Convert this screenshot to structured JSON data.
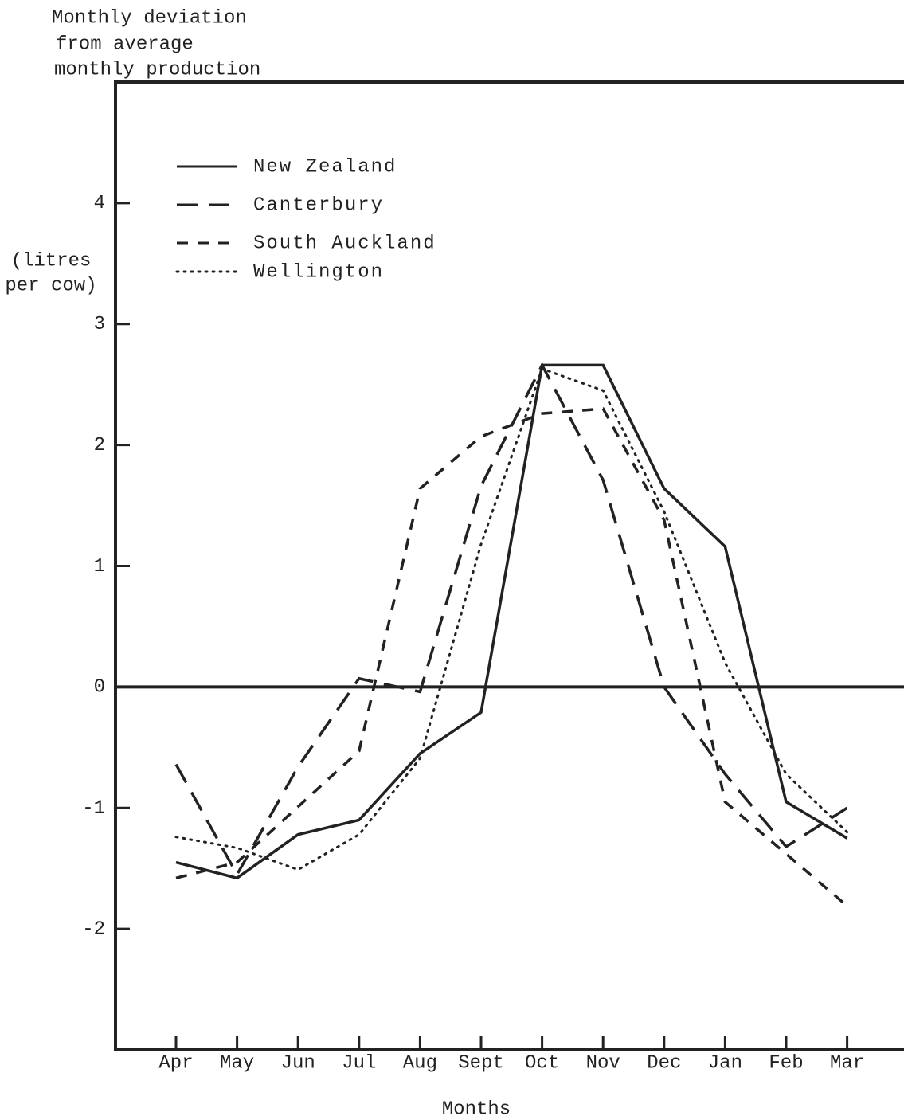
{
  "chart_data": {
    "type": "line",
    "title": [
      "Monthly deviation",
      "from average",
      "monthly production"
    ],
    "y_label": [
      "(litres",
      "per cow)"
    ],
    "x_label": "Months",
    "categories": [
      "Apr",
      "May",
      "Jun",
      "Jul",
      "Aug",
      "Sept",
      "Oct",
      "Nov",
      "Dec",
      "Jan",
      "Feb",
      "Mar"
    ],
    "series": [
      {
        "name": "New Zealand",
        "color": "#222222",
        "dash": "solid",
        "values": [
          -1.45,
          -1.58,
          -1.22,
          -1.1,
          -0.55,
          -0.21,
          2.66,
          2.66,
          1.64,
          1.16,
          -0.95,
          -1.25
        ]
      },
      {
        "name": "Canterbury",
        "color": "#222222",
        "dash": "long",
        "values": [
          -0.64,
          -1.55,
          -0.66,
          0.07,
          -0.04,
          1.66,
          2.66,
          1.71,
          0,
          -0.72,
          -1.32,
          -1.0
        ]
      },
      {
        "name": "South Auckland",
        "color": "#222222",
        "dash": "short",
        "values": [
          -1.58,
          -1.45,
          -0.99,
          -0.53,
          1.64,
          2.07,
          2.26,
          2.3,
          1.38,
          -0.95,
          -1.38,
          -1.81
        ]
      },
      {
        "name": "Wellington",
        "color": "#222222",
        "dash": "dotted",
        "values": [
          -1.24,
          -1.33,
          -1.51,
          -1.22,
          -0.59,
          1.18,
          2.63,
          2.45,
          1.45,
          0.2,
          -0.72,
          -1.2
        ]
      }
    ],
    "ylim": [
      -3,
      5
    ],
    "yticks": [
      -2,
      -1,
      0,
      1,
      2,
      3,
      4
    ],
    "legend": "upper-left",
    "zero_line": true
  }
}
